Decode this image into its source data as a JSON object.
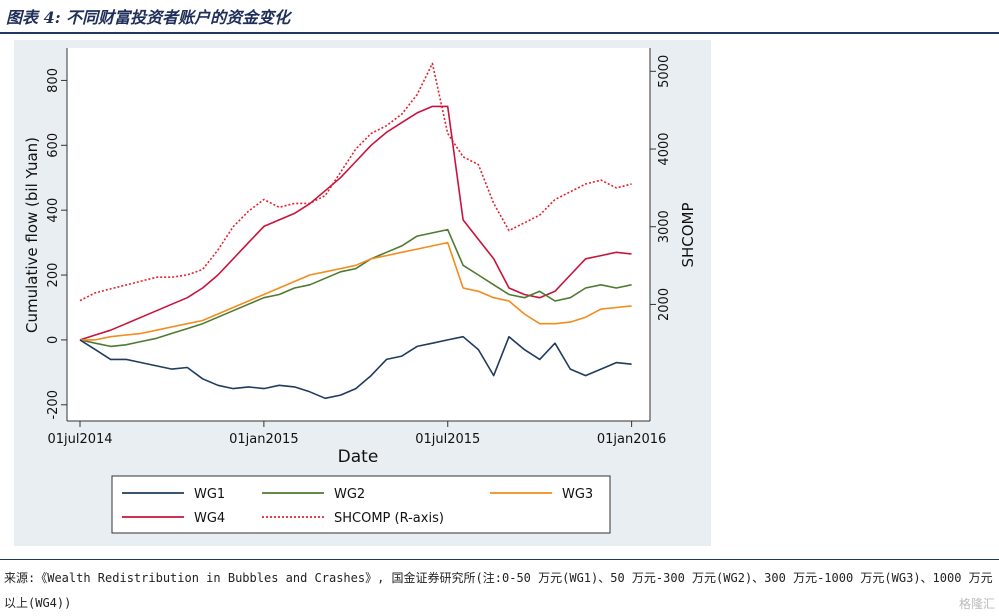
{
  "title": "图表 4: 不同财富投资者账户的资金变化",
  "source": "来源:《Wealth Redistribution in Bubbles and Crashes》, 国金证券研究所(注:0-50 万元(WG1)、50 万元-300 万元(WG2)、300 万元-1000 万元(WG3)、1000 万元以上(WG4))",
  "watermark": "格隆汇",
  "chart_data": {
    "type": "line",
    "xlabel": "Date",
    "ylabel": "Cumulative flow (bil Yuan)",
    "y2label": "SHCOMP",
    "x_ticks": [
      "01jul2014",
      "01jan2015",
      "01jul2015",
      "01jan2016"
    ],
    "x_tick_months": [
      0,
      6,
      12,
      18
    ],
    "ylim": [
      -250,
      900
    ],
    "y_ticks": [
      -200,
      0,
      200,
      400,
      600,
      800
    ],
    "y2lim": [
      500,
      5300
    ],
    "y2_ticks": [
      2000,
      3000,
      4000,
      5000
    ],
    "x_months": [
      0,
      0.5,
      1,
      1.5,
      2,
      2.5,
      3,
      3.5,
      4,
      4.5,
      5,
      5.5,
      6,
      6.5,
      7,
      7.5,
      8,
      8.5,
      9,
      9.5,
      10,
      10.5,
      11,
      11.5,
      12,
      12.5,
      13,
      13.5,
      14,
      14.5,
      15,
      15.5,
      16,
      16.5,
      17,
      17.5,
      18
    ],
    "series": [
      {
        "name": "WG1",
        "color": "#1f3c5e",
        "dash": "solid",
        "axis": "left",
        "values": [
          0,
          -30,
          -60,
          -60,
          -70,
          -80,
          -90,
          -85,
          -120,
          -140,
          -150,
          -145,
          -150,
          -140,
          -145,
          -160,
          -180,
          -170,
          -150,
          -110,
          -60,
          -50,
          -20,
          -10,
          0,
          10,
          -30,
          -110,
          10,
          -30,
          -60,
          -10,
          -90,
          -110,
          -90,
          -70,
          -75
        ]
      },
      {
        "name": "WG2",
        "color": "#4f7a30",
        "dash": "solid",
        "axis": "left",
        "values": [
          0,
          -10,
          -20,
          -15,
          -5,
          5,
          20,
          35,
          50,
          70,
          90,
          110,
          130,
          140,
          160,
          170,
          190,
          210,
          220,
          250,
          270,
          290,
          320,
          330,
          340,
          230,
          200,
          170,
          140,
          130,
          150,
          120,
          130,
          160,
          170,
          160,
          170
        ]
      },
      {
        "name": "WG3",
        "color": "#f28c1c",
        "dash": "solid",
        "axis": "left",
        "values": [
          0,
          0,
          10,
          15,
          20,
          30,
          40,
          50,
          60,
          80,
          100,
          120,
          140,
          160,
          180,
          200,
          210,
          220,
          230,
          250,
          260,
          270,
          280,
          290,
          300,
          160,
          150,
          130,
          120,
          80,
          50,
          50,
          55,
          70,
          95,
          100,
          105
        ]
      },
      {
        "name": "WG4",
        "color": "#c8143c",
        "dash": "solid",
        "axis": "left",
        "values": [
          0,
          15,
          30,
          50,
          70,
          90,
          110,
          130,
          160,
          200,
          250,
          300,
          350,
          370,
          390,
          420,
          460,
          500,
          550,
          600,
          640,
          670,
          700,
          720,
          720,
          370,
          310,
          250,
          160,
          140,
          130,
          150,
          200,
          250,
          260,
          270,
          265
        ]
      },
      {
        "name": "SHCOMP (R-axis)",
        "color": "#e8202a",
        "dash": "dotted",
        "axis": "right",
        "values": [
          2050,
          2150,
          2200,
          2250,
          2300,
          2350,
          2350,
          2380,
          2450,
          2700,
          3000,
          3200,
          3350,
          3250,
          3300,
          3300,
          3400,
          3700,
          4000,
          4200,
          4300,
          4450,
          4700,
          5100,
          4200,
          3900,
          3800,
          3300,
          2950,
          3050,
          3150,
          3350,
          3450,
          3550,
          3600,
          3500,
          3550
        ]
      }
    ],
    "legend": {
      "position": "bottom",
      "columns": 3
    },
    "grid": false
  }
}
